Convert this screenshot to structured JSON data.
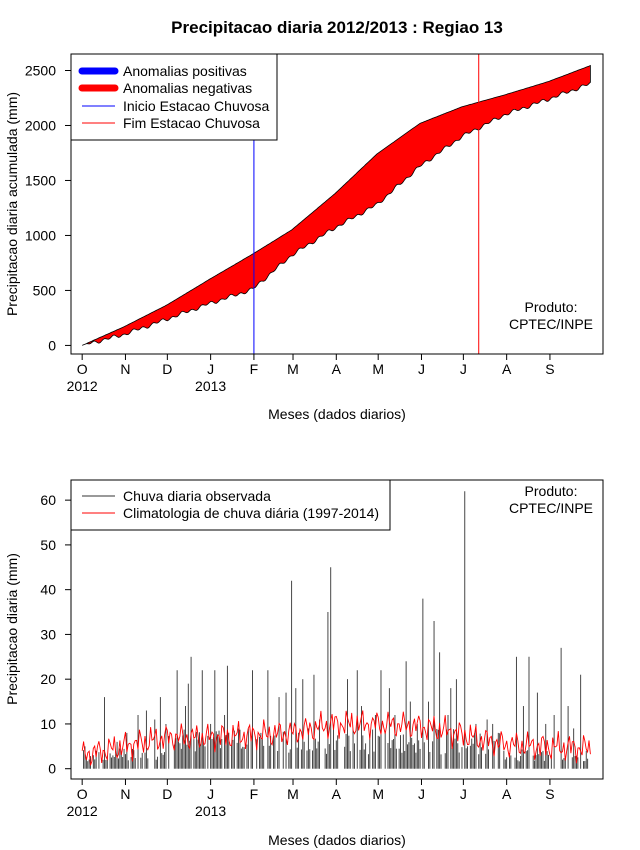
{
  "title": "Precipitacao diaria 2012/2013 : Regiao 13",
  "months": [
    "O",
    "N",
    "D",
    "J",
    "F",
    "M",
    "A",
    "M",
    "J",
    "J",
    "A",
    "S"
  ],
  "year_labels": [
    {
      "label": "2012",
      "month_index": 0
    },
    {
      "label": "2013",
      "month_index": 3
    }
  ],
  "product_text": [
    "Produto:",
    "CPTEC/INPE"
  ],
  "chart_data": [
    {
      "type": "area",
      "title": "Precipitacao diaria 2012/2013 : Regiao 13",
      "xlabel": "Meses (dados diarios)",
      "ylabel": "Precipitacao diaria acumulada (mm)",
      "ylim": [
        0,
        2550
      ],
      "yticks": [
        0,
        500,
        1000,
        1500,
        2000,
        2500
      ],
      "xlim_days": [
        -8,
        373
      ],
      "n_days": 365,
      "climatology_accumulated": {
        "days": [
          0,
          30,
          61,
          91,
          122,
          150,
          181,
          211,
          242,
          272,
          303,
          334,
          364
        ],
        "values": [
          0,
          170,
          370,
          600,
          830,
          1050,
          1380,
          1740,
          2020,
          2170,
          2280,
          2400,
          2545
        ]
      },
      "observed_accumulated": {
        "days": [
          0,
          30,
          61,
          91,
          122,
          150,
          181,
          211,
          242,
          272,
          303,
          334,
          364
        ],
        "values": [
          0,
          100,
          240,
          380,
          510,
          820,
          1070,
          1280,
          1630,
          1900,
          2100,
          2240,
          2380
        ]
      },
      "rainy_season_start_day": 123,
      "rainy_season_end_day": 284,
      "legend": [
        {
          "label": "Anomalias positivas",
          "color": "#0000ff",
          "style": "thick"
        },
        {
          "label": "Anomalias negativas",
          "color": "#ff0000",
          "style": "thick"
        },
        {
          "label": "Inicio Estacao Chuvosa",
          "color": "#0000ff",
          "style": "thin"
        },
        {
          "label": "Fim Estacao Chuvosa",
          "color": "#ff0000",
          "style": "thin"
        }
      ]
    },
    {
      "type": "line",
      "xlabel": "Meses (dados diarios)",
      "ylabel": "Precipitacao diaria (mm)",
      "ylim": [
        0,
        63
      ],
      "yticks": [
        0,
        10,
        20,
        30,
        40,
        50,
        60
      ],
      "xlim_days": [
        -8,
        373
      ],
      "series": [
        {
          "name": "Chuva diaria observada",
          "color": "#333333",
          "type": "bars",
          "peaks": [
            [
              2,
              5
            ],
            [
              10,
              4
            ],
            [
              16,
              16
            ],
            [
              25,
              6
            ],
            [
              32,
              8
            ],
            [
              40,
              12
            ],
            [
              46,
              13
            ],
            [
              52,
              11
            ],
            [
              56,
              16
            ],
            [
              60,
              10
            ],
            [
              68,
              22
            ],
            [
              74,
              14
            ],
            [
              76,
              19
            ],
            [
              78,
              25
            ],
            [
              86,
              22
            ],
            [
              92,
              10
            ],
            [
              95,
              22
            ],
            [
              102,
              12
            ],
            [
              104,
              23
            ],
            [
              112,
              9
            ],
            [
              122,
              22
            ],
            [
              128,
              8
            ],
            [
              133,
              22
            ],
            [
              141,
              16
            ],
            [
              146,
              17
            ],
            [
              150,
              42
            ],
            [
              153,
              18
            ],
            [
              158,
              20
            ],
            [
              162,
              9
            ],
            [
              166,
              21
            ],
            [
              170,
              11
            ],
            [
              176,
              35
            ],
            [
              178,
              45
            ],
            [
              190,
              20
            ],
            [
              197,
              22
            ],
            [
              200,
              14
            ],
            [
              210,
              12
            ],
            [
              214,
              22
            ],
            [
              220,
              18
            ],
            [
              224,
              12
            ],
            [
              232,
              24
            ],
            [
              235,
              15
            ],
            [
              240,
              10
            ],
            [
              244,
              38
            ],
            [
              248,
              15
            ],
            [
              252,
              33
            ],
            [
              256,
              26
            ],
            [
              262,
              12
            ],
            [
              264,
              18
            ],
            [
              268,
              20
            ],
            [
              274,
              62
            ],
            [
              282,
              10
            ],
            [
              290,
              11
            ],
            [
              294,
              10
            ],
            [
              298,
              8
            ],
            [
              311,
              25
            ],
            [
              316,
              14
            ],
            [
              320,
              25
            ],
            [
              326,
              17
            ],
            [
              332,
              10
            ],
            [
              338,
              12
            ],
            [
              343,
              27
            ],
            [
              348,
              14
            ],
            [
              352,
              9
            ],
            [
              357,
              21
            ],
            [
              361,
              4
            ]
          ]
        },
        {
          "name": "Climatologia de chuva diária (1997-2014)",
          "color": "#ff0000",
          "type": "line",
          "knots": [
            [
              0,
              3
            ],
            [
              30,
              5
            ],
            [
              60,
              7
            ],
            [
              90,
              7
            ],
            [
              120,
              7.5
            ],
            [
              150,
              8
            ],
            [
              180,
              10
            ],
            [
              210,
              10
            ],
            [
              240,
              9.5
            ],
            [
              260,
              8.5
            ],
            [
              280,
              7
            ],
            [
              300,
              5.5
            ],
            [
              330,
              5
            ],
            [
              364,
              4.5
            ]
          ]
        }
      ],
      "legend": [
        {
          "label": "Chuva diaria observada",
          "color": "#333333"
        },
        {
          "label": "Climatologia de chuva diária (1997-2014)",
          "color": "#ff0000"
        }
      ]
    }
  ]
}
